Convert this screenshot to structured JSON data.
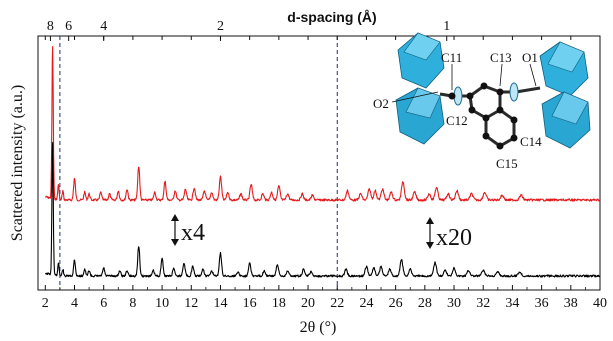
{
  "chart_data": {
    "type": "line",
    "xlabel": "2θ (°)",
    "ylabel": "Scattered intensity (a.u.)",
    "top_axis_label": "d-spacing (Å)",
    "xlim": [
      1.5,
      40
    ],
    "x_ticks": [
      2,
      4,
      6,
      8,
      10,
      12,
      14,
      16,
      18,
      20,
      22,
      24,
      26,
      28,
      30,
      32,
      34,
      36,
      38,
      40
    ],
    "x_tick_labels": [
      "2",
      "4",
      "6",
      "8",
      "10",
      "12",
      "14",
      "16",
      "18",
      "20",
      "22",
      "24",
      "26",
      "28",
      "30",
      "32",
      "34",
      "36",
      "38",
      "40"
    ],
    "top_ticks": [
      {
        "label": "8",
        "two_theta": 2.35
      },
      {
        "label": "6",
        "two_theta": 3.6
      },
      {
        "label": "4",
        "two_theta": 6.0
      },
      {
        "label": "2",
        "two_theta": 14.0
      },
      {
        "label": "1",
        "two_theta": 29.5
      }
    ],
    "reference_lines": [
      3.0,
      22.0
    ],
    "series": [
      {
        "color": "#e41a1c",
        "peaks": [
          [
            2.5,
            1.0
          ],
          [
            2.9,
            0.1
          ],
          [
            3.2,
            0.06
          ],
          [
            4.0,
            0.14
          ],
          [
            4.7,
            0.05
          ],
          [
            5.0,
            0.04
          ],
          [
            5.8,
            0.05
          ],
          [
            6.4,
            0.04
          ],
          [
            7.0,
            0.06
          ],
          [
            7.6,
            0.07
          ],
          [
            8.4,
            0.22
          ],
          [
            9.5,
            0.05
          ],
          [
            10.2,
            0.12
          ],
          [
            10.9,
            0.06
          ],
          [
            11.6,
            0.07
          ],
          [
            12.2,
            0.08
          ],
          [
            12.9,
            0.06
          ],
          [
            13.4,
            0.05
          ],
          [
            14.0,
            0.15
          ],
          [
            14.5,
            0.05
          ],
          [
            15.4,
            0.04
          ],
          [
            16.1,
            0.1
          ],
          [
            16.9,
            0.04
          ],
          [
            17.5,
            0.05
          ],
          [
            18.0,
            0.09
          ],
          [
            18.6,
            0.04
          ],
          [
            19.6,
            0.04
          ],
          [
            20.3,
            0.03
          ],
          [
            22.7,
            0.06
          ],
          [
            23.6,
            0.04
          ],
          [
            24.2,
            0.07
          ],
          [
            24.6,
            0.06
          ],
          [
            25.1,
            0.07
          ],
          [
            25.7,
            0.05
          ],
          [
            26.5,
            0.12
          ],
          [
            27.3,
            0.05
          ],
          [
            28.3,
            0.04
          ],
          [
            28.8,
            0.08
          ],
          [
            29.6,
            0.04
          ],
          [
            30.2,
            0.06
          ],
          [
            31.2,
            0.04
          ],
          [
            32.1,
            0.05
          ],
          [
            33.3,
            0.03
          ],
          [
            34.6,
            0.03
          ]
        ]
      },
      {
        "color": "#000000",
        "peaks": [
          [
            2.5,
            1.0
          ],
          [
            2.9,
            0.1
          ],
          [
            3.2,
            0.05
          ],
          [
            4.0,
            0.12
          ],
          [
            4.7,
            0.05
          ],
          [
            5.0,
            0.04
          ],
          [
            6.0,
            0.06
          ],
          [
            7.1,
            0.04
          ],
          [
            7.6,
            0.04
          ],
          [
            8.4,
            0.22
          ],
          [
            9.4,
            0.04
          ],
          [
            10.0,
            0.13
          ],
          [
            10.8,
            0.06
          ],
          [
            11.5,
            0.1
          ],
          [
            12.1,
            0.07
          ],
          [
            12.8,
            0.05
          ],
          [
            13.4,
            0.04
          ],
          [
            14.0,
            0.17
          ],
          [
            15.2,
            0.03
          ],
          [
            16.0,
            0.1
          ],
          [
            17.0,
            0.04
          ],
          [
            17.9,
            0.08
          ],
          [
            18.6,
            0.04
          ],
          [
            19.7,
            0.05
          ],
          [
            20.2,
            0.03
          ],
          [
            22.6,
            0.05
          ],
          [
            24.0,
            0.07
          ],
          [
            24.5,
            0.06
          ],
          [
            25.0,
            0.07
          ],
          [
            25.6,
            0.05
          ],
          [
            26.4,
            0.12
          ],
          [
            27.0,
            0.05
          ],
          [
            28.7,
            0.1
          ],
          [
            29.4,
            0.04
          ],
          [
            30.0,
            0.06
          ],
          [
            31.0,
            0.04
          ],
          [
            32.0,
            0.04
          ],
          [
            33.0,
            0.03
          ],
          [
            34.5,
            0.03
          ]
        ]
      }
    ],
    "annotations": [
      "x4",
      "x20"
    ]
  },
  "inset": {
    "atom_labels": [
      "C11",
      "C12",
      "C13",
      "O1",
      "O2",
      "C14",
      "C15"
    ],
    "polyhedra_color": "#29a9d6",
    "bond_color": "#2a2a2a",
    "atom_color": "#111111"
  }
}
